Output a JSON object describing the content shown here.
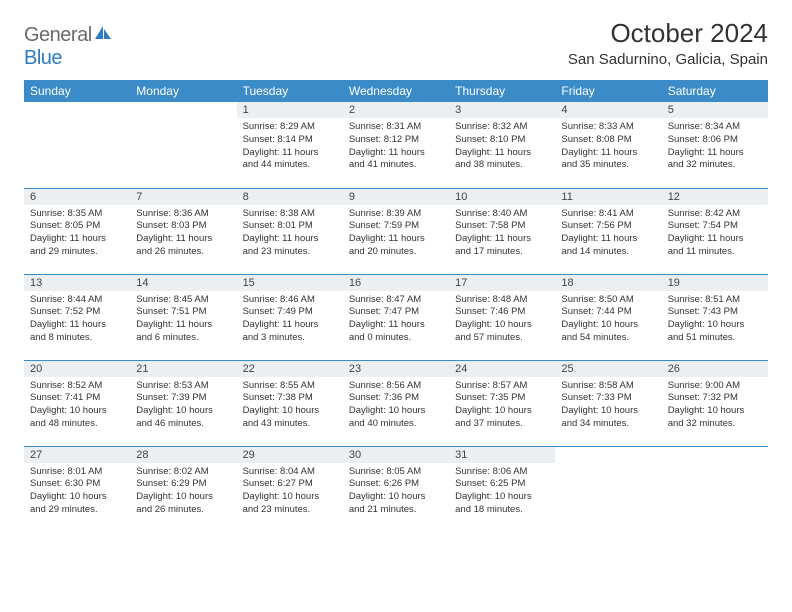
{
  "logo": {
    "part1": "General",
    "part2": "Blue"
  },
  "title": "October 2024",
  "location": "San Sadurnino, Galicia, Spain",
  "colors": {
    "header_bg": "#3b8bc8",
    "header_text": "#ffffff",
    "daynum_bg": "#eceff1",
    "border": "#3b8bc8",
    "logo_gray": "#6a6a6a",
    "logo_blue": "#2e7cc0"
  },
  "typography": {
    "title_fontsize": 26,
    "location_fontsize": 15,
    "header_fontsize": 12,
    "daynum_fontsize": 11,
    "content_fontsize": 9.5
  },
  "day_headers": [
    "Sunday",
    "Monday",
    "Tuesday",
    "Wednesday",
    "Thursday",
    "Friday",
    "Saturday"
  ],
  "weeks": [
    [
      {
        "n": "",
        "sr": "",
        "ss": "",
        "dl": ""
      },
      {
        "n": "",
        "sr": "",
        "ss": "",
        "dl": ""
      },
      {
        "n": "1",
        "sr": "Sunrise: 8:29 AM",
        "ss": "Sunset: 8:14 PM",
        "dl": "Daylight: 11 hours and 44 minutes."
      },
      {
        "n": "2",
        "sr": "Sunrise: 8:31 AM",
        "ss": "Sunset: 8:12 PM",
        "dl": "Daylight: 11 hours and 41 minutes."
      },
      {
        "n": "3",
        "sr": "Sunrise: 8:32 AM",
        "ss": "Sunset: 8:10 PM",
        "dl": "Daylight: 11 hours and 38 minutes."
      },
      {
        "n": "4",
        "sr": "Sunrise: 8:33 AM",
        "ss": "Sunset: 8:08 PM",
        "dl": "Daylight: 11 hours and 35 minutes."
      },
      {
        "n": "5",
        "sr": "Sunrise: 8:34 AM",
        "ss": "Sunset: 8:06 PM",
        "dl": "Daylight: 11 hours and 32 minutes."
      }
    ],
    [
      {
        "n": "6",
        "sr": "Sunrise: 8:35 AM",
        "ss": "Sunset: 8:05 PM",
        "dl": "Daylight: 11 hours and 29 minutes."
      },
      {
        "n": "7",
        "sr": "Sunrise: 8:36 AM",
        "ss": "Sunset: 8:03 PM",
        "dl": "Daylight: 11 hours and 26 minutes."
      },
      {
        "n": "8",
        "sr": "Sunrise: 8:38 AM",
        "ss": "Sunset: 8:01 PM",
        "dl": "Daylight: 11 hours and 23 minutes."
      },
      {
        "n": "9",
        "sr": "Sunrise: 8:39 AM",
        "ss": "Sunset: 7:59 PM",
        "dl": "Daylight: 11 hours and 20 minutes."
      },
      {
        "n": "10",
        "sr": "Sunrise: 8:40 AM",
        "ss": "Sunset: 7:58 PM",
        "dl": "Daylight: 11 hours and 17 minutes."
      },
      {
        "n": "11",
        "sr": "Sunrise: 8:41 AM",
        "ss": "Sunset: 7:56 PM",
        "dl": "Daylight: 11 hours and 14 minutes."
      },
      {
        "n": "12",
        "sr": "Sunrise: 8:42 AM",
        "ss": "Sunset: 7:54 PM",
        "dl": "Daylight: 11 hours and 11 minutes."
      }
    ],
    [
      {
        "n": "13",
        "sr": "Sunrise: 8:44 AM",
        "ss": "Sunset: 7:52 PM",
        "dl": "Daylight: 11 hours and 8 minutes."
      },
      {
        "n": "14",
        "sr": "Sunrise: 8:45 AM",
        "ss": "Sunset: 7:51 PM",
        "dl": "Daylight: 11 hours and 6 minutes."
      },
      {
        "n": "15",
        "sr": "Sunrise: 8:46 AM",
        "ss": "Sunset: 7:49 PM",
        "dl": "Daylight: 11 hours and 3 minutes."
      },
      {
        "n": "16",
        "sr": "Sunrise: 8:47 AM",
        "ss": "Sunset: 7:47 PM",
        "dl": "Daylight: 11 hours and 0 minutes."
      },
      {
        "n": "17",
        "sr": "Sunrise: 8:48 AM",
        "ss": "Sunset: 7:46 PM",
        "dl": "Daylight: 10 hours and 57 minutes."
      },
      {
        "n": "18",
        "sr": "Sunrise: 8:50 AM",
        "ss": "Sunset: 7:44 PM",
        "dl": "Daylight: 10 hours and 54 minutes."
      },
      {
        "n": "19",
        "sr": "Sunrise: 8:51 AM",
        "ss": "Sunset: 7:43 PM",
        "dl": "Daylight: 10 hours and 51 minutes."
      }
    ],
    [
      {
        "n": "20",
        "sr": "Sunrise: 8:52 AM",
        "ss": "Sunset: 7:41 PM",
        "dl": "Daylight: 10 hours and 48 minutes."
      },
      {
        "n": "21",
        "sr": "Sunrise: 8:53 AM",
        "ss": "Sunset: 7:39 PM",
        "dl": "Daylight: 10 hours and 46 minutes."
      },
      {
        "n": "22",
        "sr": "Sunrise: 8:55 AM",
        "ss": "Sunset: 7:38 PM",
        "dl": "Daylight: 10 hours and 43 minutes."
      },
      {
        "n": "23",
        "sr": "Sunrise: 8:56 AM",
        "ss": "Sunset: 7:36 PM",
        "dl": "Daylight: 10 hours and 40 minutes."
      },
      {
        "n": "24",
        "sr": "Sunrise: 8:57 AM",
        "ss": "Sunset: 7:35 PM",
        "dl": "Daylight: 10 hours and 37 minutes."
      },
      {
        "n": "25",
        "sr": "Sunrise: 8:58 AM",
        "ss": "Sunset: 7:33 PM",
        "dl": "Daylight: 10 hours and 34 minutes."
      },
      {
        "n": "26",
        "sr": "Sunrise: 9:00 AM",
        "ss": "Sunset: 7:32 PM",
        "dl": "Daylight: 10 hours and 32 minutes."
      }
    ],
    [
      {
        "n": "27",
        "sr": "Sunrise: 8:01 AM",
        "ss": "Sunset: 6:30 PM",
        "dl": "Daylight: 10 hours and 29 minutes."
      },
      {
        "n": "28",
        "sr": "Sunrise: 8:02 AM",
        "ss": "Sunset: 6:29 PM",
        "dl": "Daylight: 10 hours and 26 minutes."
      },
      {
        "n": "29",
        "sr": "Sunrise: 8:04 AM",
        "ss": "Sunset: 6:27 PM",
        "dl": "Daylight: 10 hours and 23 minutes."
      },
      {
        "n": "30",
        "sr": "Sunrise: 8:05 AM",
        "ss": "Sunset: 6:26 PM",
        "dl": "Daylight: 10 hours and 21 minutes."
      },
      {
        "n": "31",
        "sr": "Sunrise: 8:06 AM",
        "ss": "Sunset: 6:25 PM",
        "dl": "Daylight: 10 hours and 18 minutes."
      },
      {
        "n": "",
        "sr": "",
        "ss": "",
        "dl": ""
      },
      {
        "n": "",
        "sr": "",
        "ss": "",
        "dl": ""
      }
    ]
  ]
}
